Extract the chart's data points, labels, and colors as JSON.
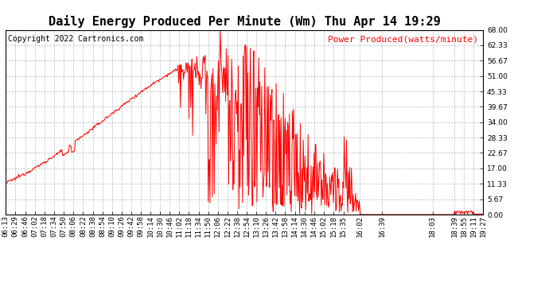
{
  "title": "Daily Energy Produced Per Minute (Wm) Thu Apr 14 19:29",
  "legend_label": "Power Produced(watts/minute)",
  "copyright": "Copyright 2022 Cartronics.com",
  "line_color": "red",
  "background_color": "white",
  "grid_color": "#bbbbbb",
  "ymin": 0.0,
  "ymax": 68.0,
  "yticks": [
    0.0,
    5.67,
    11.33,
    17.0,
    22.67,
    28.33,
    34.0,
    39.67,
    45.33,
    51.0,
    56.67,
    62.33,
    68.0
  ],
  "x_tick_labels": [
    "06:13",
    "06:29",
    "06:46",
    "07:02",
    "07:18",
    "07:34",
    "07:50",
    "08:06",
    "08:22",
    "08:38",
    "08:54",
    "09:10",
    "09:26",
    "09:42",
    "09:58",
    "10:14",
    "10:30",
    "10:46",
    "11:02",
    "11:18",
    "11:34",
    "11:50",
    "12:06",
    "12:22",
    "12:38",
    "12:54",
    "13:10",
    "13:26",
    "13:42",
    "13:58",
    "14:14",
    "14:30",
    "14:46",
    "15:02",
    "15:18",
    "15:35",
    "16:02",
    "16:39",
    "18:03",
    "18:39",
    "18:55",
    "19:11",
    "19:27"
  ],
  "title_fontsize": 11,
  "legend_fontsize": 8,
  "copyright_fontsize": 7,
  "tick_fontsize": 6.5
}
